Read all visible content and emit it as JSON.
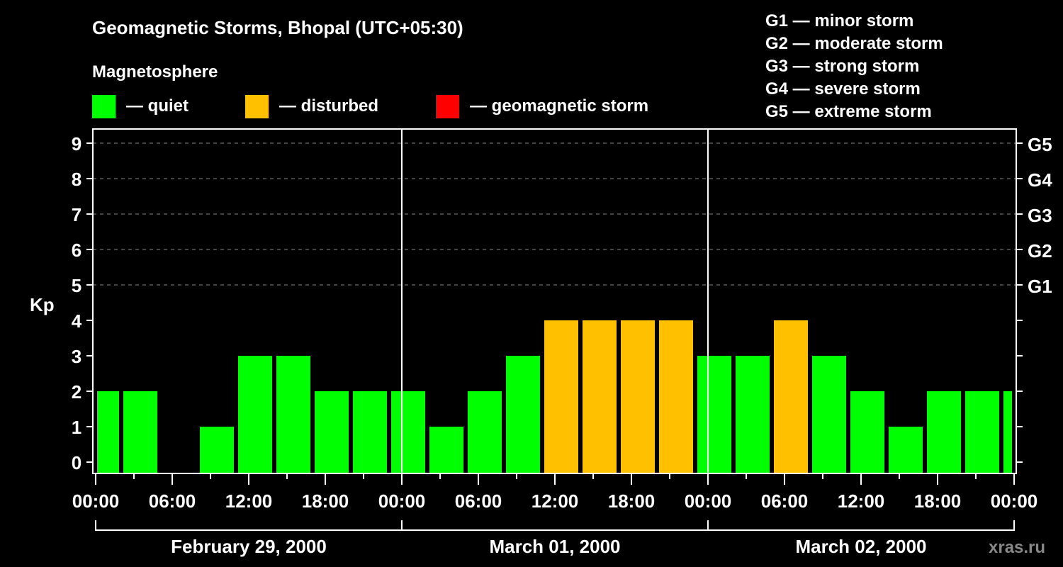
{
  "chart_data": {
    "type": "bar",
    "title": "Geomagnetic Storms, Bhopal (UTC+05:30)",
    "subtitle": "Magnetosphere",
    "ylabel": "Kp",
    "ylim": [
      0,
      9
    ],
    "yticks": [
      "0",
      "1",
      "2",
      "3",
      "4",
      "5",
      "6",
      "7",
      "8",
      "9"
    ],
    "right_ticks": [
      {
        "kp": 5,
        "label": "G1"
      },
      {
        "kp": 6,
        "label": "G2"
      },
      {
        "kp": 7,
        "label": "G3"
      },
      {
        "kp": 8,
        "label": "G4"
      },
      {
        "kp": 9,
        "label": "G5"
      }
    ],
    "xticks": [
      "00:00",
      "06:00",
      "12:00",
      "18:00",
      "00:00",
      "06:00",
      "12:00",
      "18:00",
      "00:00",
      "06:00",
      "12:00",
      "18:00",
      "00:00"
    ],
    "days": [
      "February 29, 2000",
      "March 01, 2000",
      "March 02, 2000"
    ],
    "x_range_hours": [
      0,
      72
    ],
    "bar_interval_hours": 3,
    "first_bar_start_hour": -0.5,
    "values": [
      2,
      2,
      0,
      1,
      3,
      3,
      2,
      2,
      2,
      1,
      2,
      3,
      4,
      4,
      4,
      4,
      3,
      3,
      4,
      3,
      2,
      1,
      2,
      2,
      2
    ],
    "legend": [
      {
        "label": "— quiet",
        "color": "#00ff00"
      },
      {
        "label": "— disturbed",
        "color": "#ffc000"
      },
      {
        "label": "— geomagnetic storm",
        "color": "#ff0000"
      }
    ],
    "scale_legend": [
      "G1 — minor storm",
      "G2 — moderate storm",
      "G3 — strong storm",
      "G4 — severe storm",
      "G5 — extreme storm"
    ],
    "grid": true
  },
  "watermark": "xras.ru"
}
